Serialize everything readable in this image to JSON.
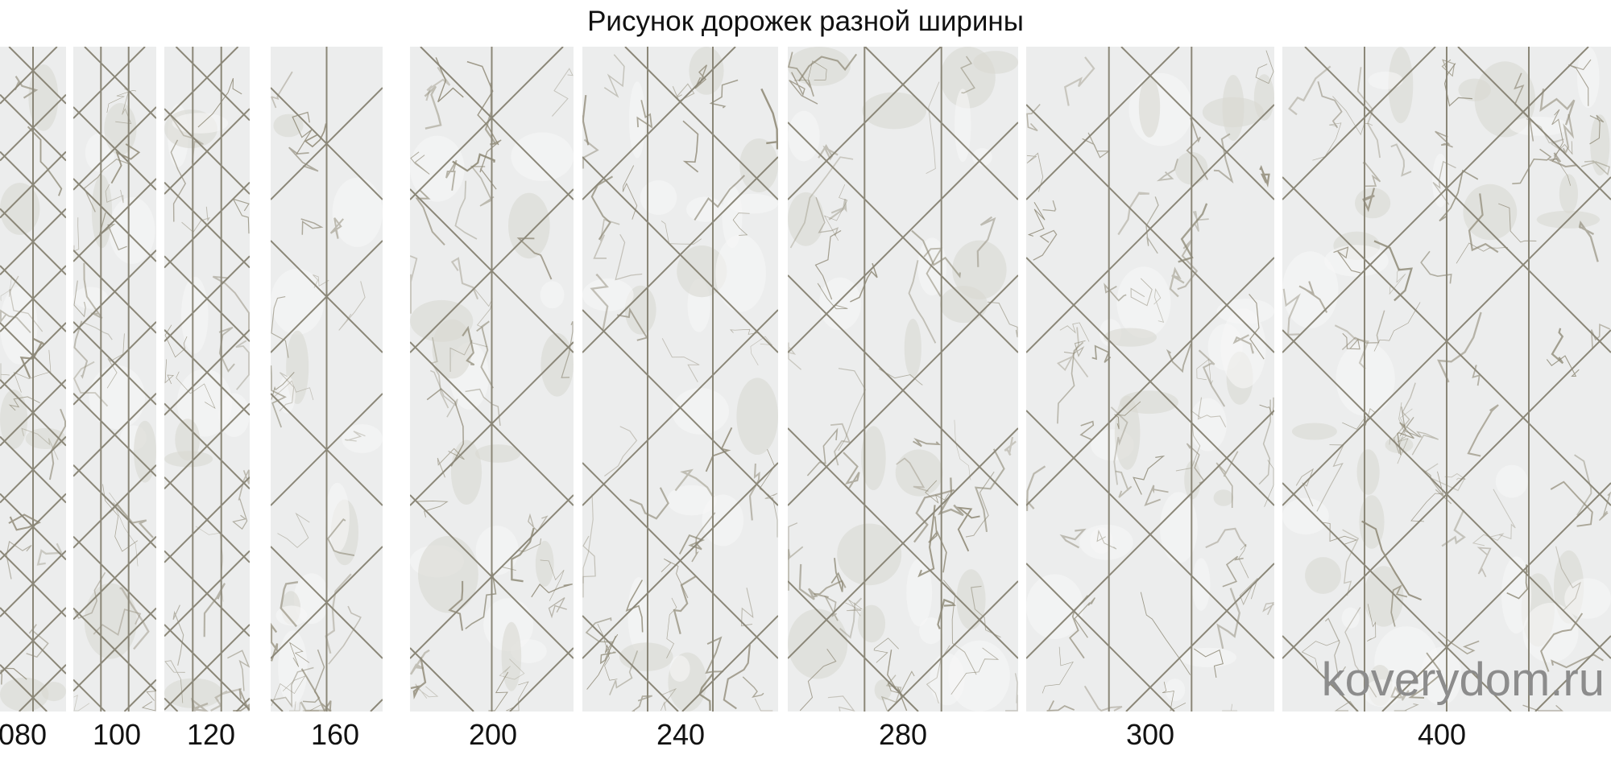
{
  "title": "Рисунок дорожек разной ширины",
  "watermark": "koverydom.ru",
  "colors": {
    "background": "#eceded",
    "vein": "#8a8470",
    "line": "#8b8778"
  },
  "runners": [
    {
      "label": "080",
      "width_cm": 80
    },
    {
      "label": "100",
      "width_cm": 100
    },
    {
      "label": "120",
      "width_cm": 120
    },
    {
      "label": "160",
      "width_cm": 160
    },
    {
      "label": "200",
      "width_cm": 200
    },
    {
      "label": "240",
      "width_cm": 240
    },
    {
      "label": "280",
      "width_cm": 280
    },
    {
      "label": "300",
      "width_cm": 300
    },
    {
      "label": "400",
      "width_cm": 400
    }
  ]
}
